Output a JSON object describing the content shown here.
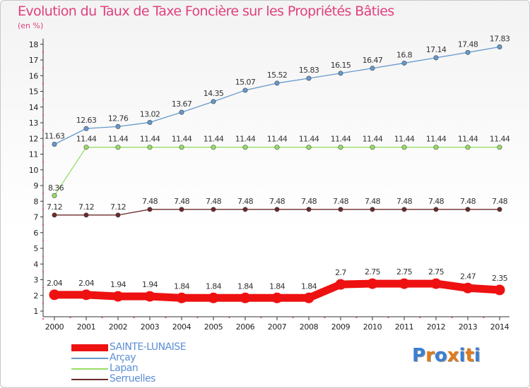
{
  "chart_data": {
    "type": "line",
    "title": "Evolution du Taux de Taxe Foncière sur les Propriétés Bâties",
    "subtitle": "(en %)",
    "categories": [
      "2000",
      "2001",
      "2002",
      "2003",
      "2004",
      "2005",
      "2006",
      "2007",
      "2008",
      "2009",
      "2010",
      "2011",
      "2012",
      "2013",
      "2014"
    ],
    "ylim": [
      1,
      18
    ],
    "yticks": [
      1,
      2,
      3,
      4,
      5,
      6,
      7,
      8,
      9,
      10,
      11,
      12,
      13,
      14,
      15,
      16,
      17,
      18
    ],
    "grid": false,
    "legend_position": "bottom-left",
    "series": [
      {
        "name": "SAINTE-LUNAISE",
        "color": "#ee1111",
        "values": [
          2.04,
          2.04,
          1.94,
          1.94,
          1.84,
          1.84,
          1.84,
          1.84,
          1.84,
          2.7,
          2.75,
          2.75,
          2.75,
          2.47,
          2.35
        ],
        "labels": [
          "2.04",
          "2.04",
          "1.94",
          "1.94",
          "1.84",
          "1.84",
          "1.84",
          "1.84",
          "1.84",
          "2.7",
          "2.75",
          "2.75",
          "2.75",
          "2.47",
          "2.35"
        ]
      },
      {
        "name": "Arçay",
        "color": "#6699cc",
        "values": [
          11.63,
          12.63,
          12.76,
          13.02,
          13.67,
          14.35,
          15.07,
          15.52,
          15.83,
          16.15,
          16.47,
          16.8,
          17.14,
          17.48,
          17.83
        ],
        "labels": [
          "11.63",
          "12.63",
          "12.76",
          "13.02",
          "13.67",
          "14.35",
          "15.07",
          "15.52",
          "15.83",
          "16.15",
          "16.47",
          "16.8",
          "17.14",
          "17.48",
          "17.83"
        ]
      },
      {
        "name": "Lapan",
        "color": "#99dd66",
        "values": [
          8.36,
          11.44,
          11.44,
          11.44,
          11.44,
          11.44,
          11.44,
          11.44,
          11.44,
          11.44,
          11.44,
          11.44,
          11.44,
          11.44,
          11.44
        ],
        "labels": [
          "8.36",
          "11.44",
          "11.44",
          "11.44",
          "11.44",
          "11.44",
          "11.44",
          "11.44",
          "11.44",
          "11.44",
          "11.44",
          "11.44",
          "11.44",
          "11.44",
          "11.44"
        ]
      },
      {
        "name": "Serruelles",
        "color": "#6b2a2a",
        "values": [
          7.12,
          7.12,
          7.12,
          7.48,
          7.48,
          7.48,
          7.48,
          7.48,
          7.48,
          7.48,
          7.48,
          7.48,
          7.48,
          7.48,
          7.48
        ],
        "labels": [
          "7.12",
          "7.12",
          "7.12",
          "7.48",
          "7.48",
          "7.48",
          "7.48",
          "7.48",
          "7.48",
          "7.48",
          "7.48",
          "7.48",
          "7.48",
          "7.48",
          "7.48"
        ]
      }
    ]
  },
  "logo": {
    "text": "Proxiti"
  }
}
